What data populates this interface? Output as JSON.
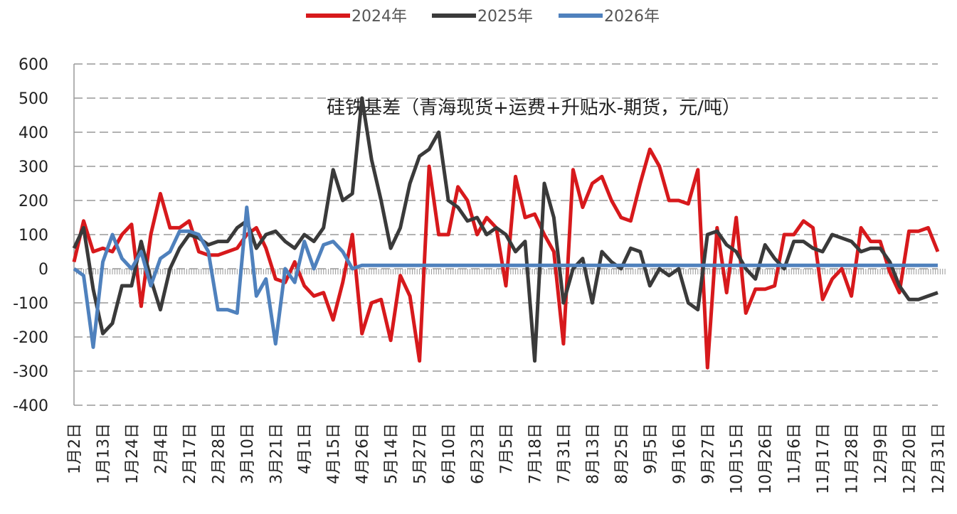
{
  "chart_data": {
    "type": "line",
    "title": "硅铁基差（青海现货+运费+升贴水-期货，元/吨）",
    "categories": [
      "1月2日",
      null,
      null,
      "1月13日",
      null,
      null,
      "1月24日",
      null,
      null,
      "2月4日",
      null,
      null,
      "2月17日",
      null,
      null,
      "2月28日",
      null,
      null,
      "3月10日",
      null,
      null,
      "3月21日",
      null,
      null,
      "4月1日",
      null,
      null,
      "4月15日",
      null,
      null,
      "4月26日",
      null,
      null,
      "5月14日",
      null,
      null,
      "5月27日",
      null,
      null,
      "6月10日",
      null,
      null,
      "6月23日",
      null,
      null,
      "7月5日",
      null,
      null,
      "7月18日",
      null,
      null,
      "7月31日",
      null,
      null,
      "8月13日",
      null,
      null,
      "8月25日",
      null,
      null,
      "9月5日",
      null,
      null,
      "9月16日",
      null,
      null,
      "9月27日",
      null,
      null,
      "10月15日",
      null,
      null,
      "10月26日",
      null,
      null,
      "11月6日",
      null,
      null,
      "11月17日",
      null,
      null,
      "11月28日",
      null,
      null,
      "12月9日",
      null,
      null,
      "12月20日",
      null,
      null,
      "12月31日"
    ],
    "series": [
      {
        "name": "2024年",
        "color": "#d7191c",
        "values": [
          20,
          140,
          50,
          60,
          50,
          100,
          130,
          -110,
          100,
          220,
          120,
          120,
          140,
          50,
          40,
          40,
          50,
          60,
          100,
          120,
          60,
          -30,
          -40,
          20,
          -50,
          -80,
          -70,
          -150,
          -40,
          100,
          -190,
          -100,
          -90,
          -210,
          -20,
          -80,
          -270,
          300,
          100,
          100,
          240,
          200,
          100,
          150,
          120,
          -50,
          270,
          150,
          160,
          100,
          50,
          -220,
          290,
          180,
          250,
          270,
          200,
          150,
          140,
          250,
          350,
          300,
          200,
          200,
          190,
          290,
          -290,
          120,
          -70,
          150,
          -130,
          -60,
          -60,
          -50,
          100,
          100,
          140,
          120,
          -90,
          -30,
          0,
          -80,
          120,
          80,
          80,
          -10,
          -70,
          110,
          110,
          120,
          50
        ]
      },
      {
        "name": "2025年",
        "color": "#3a3a3a",
        "values": [
          60,
          120,
          -60,
          -190,
          -160,
          -50,
          -50,
          80,
          -30,
          -120,
          0,
          60,
          100,
          90,
          70,
          80,
          80,
          120,
          140,
          60,
          100,
          110,
          80,
          60,
          100,
          80,
          120,
          290,
          200,
          220,
          500,
          320,
          200,
          60,
          120,
          250,
          330,
          350,
          400,
          200,
          180,
          140,
          150,
          100,
          120,
          100,
          50,
          80,
          -270,
          250,
          150,
          -100,
          0,
          30,
          -100,
          50,
          20,
          0,
          60,
          50,
          -50,
          0,
          -20,
          0,
          -100,
          -120,
          100,
          110,
          70,
          50,
          0,
          -30,
          70,
          30,
          0,
          80,
          80,
          60,
          50,
          100,
          90,
          80,
          50,
          60,
          60,
          20,
          -50,
          -90,
          -90,
          -80,
          -70
        ]
      },
      {
        "name": "2026年",
        "color": "#4f81bd",
        "values": [
          0,
          -20,
          -230,
          20,
          100,
          30,
          0,
          50,
          -50,
          30,
          50,
          110,
          110,
          100,
          50,
          -120,
          -120,
          -130,
          180,
          -80,
          -30,
          -220,
          0,
          -40,
          80,
          0,
          70,
          80,
          50,
          0,
          10,
          10,
          10,
          10,
          10,
          10,
          10,
          10,
          10,
          10,
          10,
          10,
          10,
          10,
          10,
          10,
          10,
          10,
          10,
          10,
          10,
          10,
          10,
          10,
          10,
          10,
          10,
          10,
          10,
          10,
          10,
          10,
          10,
          10,
          10,
          10,
          10,
          10,
          10,
          10,
          10,
          10,
          10,
          10,
          10,
          10,
          10,
          10,
          10,
          10,
          10,
          10,
          10,
          10,
          10,
          10,
          10,
          10,
          10,
          10,
          10
        ]
      }
    ],
    "ylim": [
      -400,
      600
    ],
    "yticks": [
      -400,
      -300,
      -200,
      -100,
      0,
      100,
      200,
      300,
      400,
      500,
      600
    ],
    "grid": true,
    "legend": "top"
  }
}
